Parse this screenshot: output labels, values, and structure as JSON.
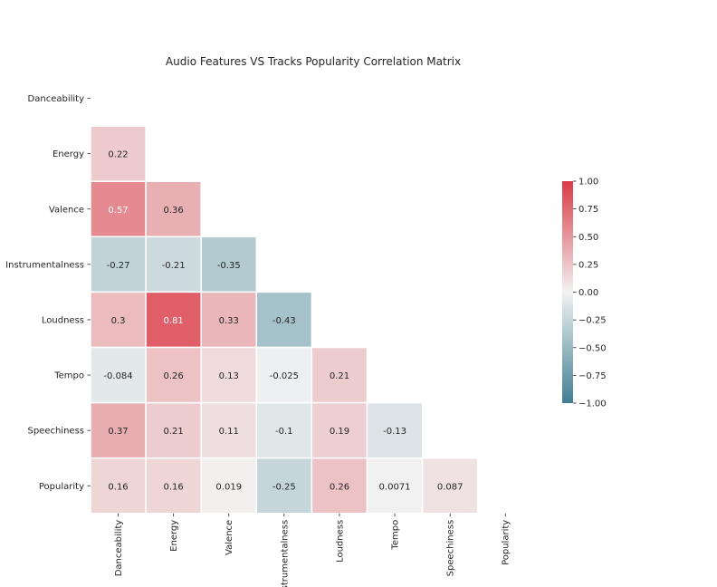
{
  "chart_data": {
    "type": "heatmap",
    "title": "Audio Features VS Tracks Popularity Correlation Matrix",
    "variables": [
      "Danceability",
      "Energy",
      "Valence",
      "Instrumentalness",
      "Loudness",
      "Tempo",
      "Speechiness",
      "Popularity"
    ],
    "mask": "upper-triangle-including-diagonal",
    "matrix": [
      [
        null,
        null,
        null,
        null,
        null,
        null,
        null,
        null
      ],
      [
        0.22,
        null,
        null,
        null,
        null,
        null,
        null,
        null
      ],
      [
        0.57,
        0.36,
        null,
        null,
        null,
        null,
        null,
        null
      ],
      [
        -0.27,
        -0.21,
        -0.35,
        null,
        null,
        null,
        null,
        null
      ],
      [
        0.3,
        0.81,
        0.33,
        -0.43,
        null,
        null,
        null,
        null
      ],
      [
        -0.084,
        0.26,
        0.13,
        -0.025,
        0.21,
        null,
        null,
        null
      ],
      [
        0.37,
        0.21,
        0.11,
        -0.1,
        0.19,
        -0.13,
        null,
        null
      ],
      [
        0.16,
        0.16,
        0.019,
        -0.25,
        0.26,
        0.0071,
        0.087,
        null
      ]
    ],
    "labels": [
      [
        null,
        null,
        null,
        null,
        null,
        null,
        null,
        null
      ],
      [
        "0.22",
        null,
        null,
        null,
        null,
        null,
        null,
        null
      ],
      [
        "0.57",
        "0.36",
        null,
        null,
        null,
        null,
        null,
        null
      ],
      [
        "-0.27",
        "-0.21",
        "-0.35",
        null,
        null,
        null,
        null,
        null
      ],
      [
        "0.3",
        "0.81",
        "0.33",
        "-0.43",
        null,
        null,
        null,
        null
      ],
      [
        "-0.084",
        "0.26",
        "0.13",
        "-0.025",
        "0.21",
        null,
        null,
        null
      ],
      [
        "0.37",
        "0.21",
        "0.11",
        "-0.1",
        "0.19",
        "-0.13",
        null,
        null
      ],
      [
        "0.16",
        "0.16",
        "0.019",
        "-0.25",
        "0.26",
        "0.0071",
        "0.087",
        null
      ]
    ],
    "colorbar": {
      "vmin": -1.0,
      "vmax": 1.0,
      "ticks": [
        1.0,
        0.75,
        0.5,
        0.25,
        0.0,
        -0.25,
        -0.5,
        -0.75,
        -1.0
      ],
      "tick_labels": [
        "1.00",
        "0.75",
        "0.50",
        "0.25",
        "0.00",
        "−0.25",
        "−0.50",
        "−0.75",
        "−1.00"
      ]
    },
    "colors": {
      "negative": "#3f7f93",
      "neutral": "#f2f2f2",
      "positive": "#da3b46"
    }
  }
}
